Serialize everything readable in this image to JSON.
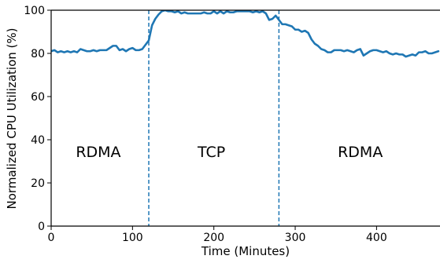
{
  "chart_data": {
    "type": "line",
    "title": "",
    "xlabel": "Time (Minutes)",
    "ylabel": "Normalized CPU Utilization (%)",
    "xlim": [
      0,
      478
    ],
    "ylim": [
      0,
      100
    ],
    "xticks": [
      0,
      100,
      200,
      300,
      400
    ],
    "yticks": [
      0,
      20,
      40,
      60,
      80,
      100
    ],
    "xtick_labels": [
      "0",
      "100",
      "200",
      "300",
      "400"
    ],
    "ytick_labels": [
      "0",
      "20",
      "40",
      "60",
      "80",
      "100"
    ],
    "grid": false,
    "legend": "none",
    "line_color": "#1f77b4",
    "vlines": [
      {
        "x": 120,
        "color": "#1f77b4",
        "style": "dashed"
      },
      {
        "x": 280,
        "color": "#1f77b4",
        "style": "dashed"
      }
    ],
    "annotations": [
      {
        "text": "RDMA",
        "x": 58,
        "y": 32
      },
      {
        "text": "TCP",
        "x": 197,
        "y": 32
      },
      {
        "text": "RDMA",
        "x": 380,
        "y": 32
      }
    ],
    "series": [
      {
        "x": [
          0,
          4,
          8,
          12,
          16,
          20,
          24,
          28,
          32,
          36,
          40,
          44,
          48,
          52,
          56,
          60,
          64,
          68,
          72,
          76,
          80,
          84,
          88,
          92,
          96,
          100,
          104,
          108,
          112,
          116,
          120,
          124,
          128,
          132,
          136,
          140,
          144,
          148,
          152,
          156,
          160,
          164,
          168,
          172,
          176,
          180,
          184,
          188,
          192,
          196,
          200,
          204,
          208,
          212,
          216,
          220,
          224,
          228,
          232,
          236,
          240,
          244,
          248,
          252,
          256,
          260,
          264,
          268,
          272,
          276,
          280,
          284,
          288,
          292,
          296,
          300,
          304,
          308,
          312,
          316,
          320,
          324,
          328,
          332,
          336,
          340,
          344,
          348,
          352,
          356,
          360,
          364,
          368,
          372,
          376,
          380,
          384,
          388,
          392,
          396,
          400,
          404,
          408,
          412,
          416,
          420,
          424,
          428,
          432,
          436,
          440,
          444,
          448,
          452,
          456,
          460,
          464,
          468,
          472,
          476
        ],
        "values": [
          81,
          81.5,
          80.5,
          81,
          80.5,
          81,
          80.5,
          81,
          80.5,
          82,
          81.5,
          81,
          81,
          81.5,
          81,
          81.5,
          81.5,
          81.5,
          82.5,
          83.5,
          83.5,
          81.5,
          82,
          81,
          82,
          82.5,
          81.5,
          81.5,
          82,
          84,
          86,
          93,
          96,
          98,
          99.5,
          100,
          99.5,
          99.5,
          99,
          99.5,
          98.5,
          99,
          98.5,
          98.5,
          98.5,
          98.5,
          98.5,
          99,
          98.5,
          98.5,
          99.5,
          98.5,
          99.5,
          98.5,
          99.5,
          99,
          99,
          99.5,
          99.5,
          99.5,
          99.5,
          99.5,
          99,
          99.5,
          99,
          99.5,
          98.5,
          95.5,
          96,
          97.5,
          95.5,
          93.5,
          93.5,
          93,
          92.5,
          91,
          91,
          90,
          90.5,
          89.5,
          86.5,
          84.5,
          83.5,
          82,
          81.5,
          80.5,
          80.5,
          81.5,
          81.5,
          81.5,
          81,
          81.5,
          81,
          80.5,
          81.5,
          82,
          79,
          80,
          81,
          81.5,
          81.5,
          81,
          80.5,
          81,
          80,
          79.5,
          80,
          79.5,
          79.5,
          78.5,
          79,
          79.5,
          79,
          80.5,
          80.5,
          81,
          80,
          80,
          80.5,
          81
        ]
      }
    ]
  }
}
